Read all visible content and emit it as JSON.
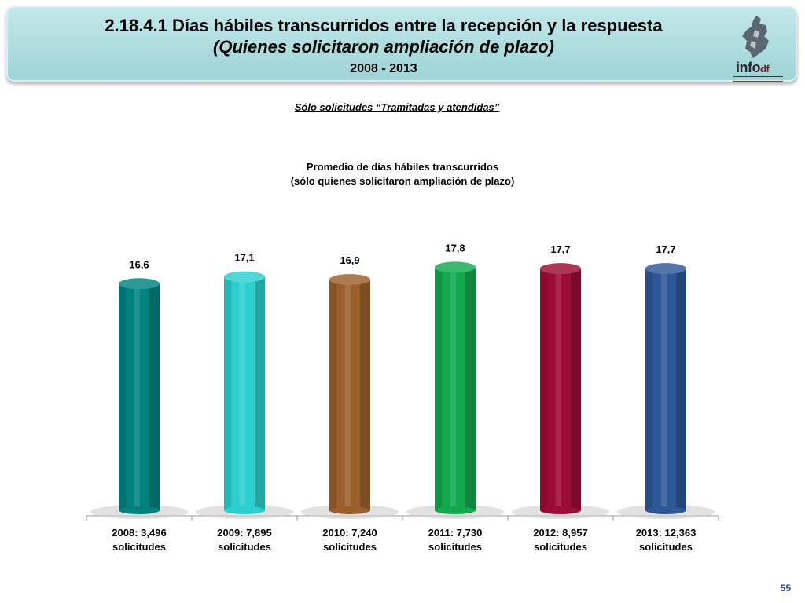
{
  "header": {
    "title_line1": "2.18.4.1 Días hábiles transcurridos entre la recepción y la respuesta",
    "title_line2": "(Quienes solicitaron ampliación de plazo)",
    "title_line3": "2008 - 2013",
    "logo_text": "info",
    "logo_suffix": "df",
    "background_color": "#a8d9dc"
  },
  "subtitle": "Sólo solicitudes “Tramitadas y atendidas”",
  "chart_data": {
    "type": "bar",
    "title_line1": "Promedio de días hábiles transcurridos",
    "title_line2": "(sólo quienes solicitaron ampliación de plazo)",
    "categories": [
      [
        "2008: 3,496",
        "solicitudes"
      ],
      [
        "2009: 7,895",
        "solicitudes"
      ],
      [
        "2010: 7,240",
        "solicitudes"
      ],
      [
        "2011: 7,730",
        "solicitudes"
      ],
      [
        "2012: 8,957",
        "solicitudes"
      ],
      [
        "2013: 12,363",
        "solicitudes"
      ]
    ],
    "values": [
      16.6,
      17.1,
      16.9,
      17.8,
      17.7,
      17.7
    ],
    "value_labels": [
      "16,6",
      "17,1",
      "16,9",
      "17,8",
      "17,7",
      "17,7"
    ],
    "colors": [
      "#00827f",
      "#2ccfd0",
      "#9b5f2c",
      "#12a84e",
      "#9c0c35",
      "#2e5797"
    ],
    "ylim": [
      0,
      18.4
    ],
    "grid": false,
    "legend": "none"
  },
  "page_number": "55"
}
